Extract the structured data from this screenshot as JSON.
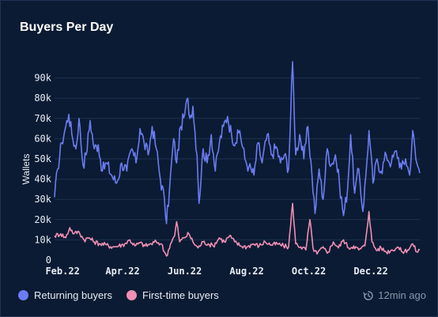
{
  "title": "Buyers Per Day",
  "updated": "12min ago",
  "chart_data": {
    "type": "line",
    "title": "Buyers Per Day",
    "xlabel": "",
    "ylabel": "Wallets",
    "x_ticks": [
      "Feb.22",
      "Apr.22",
      "Jun.22",
      "Aug.22",
      "Oct.22",
      "Dec.22"
    ],
    "y_ticks": [
      "0",
      "10k",
      "20k",
      "30k",
      "40k",
      "50k",
      "60k",
      "70k",
      "80k",
      "90k"
    ],
    "ylim": [
      0,
      100000
    ],
    "x_range": [
      "2022-01-28",
      "2023-01-22"
    ],
    "grid": true,
    "legend_position": "bottom-left",
    "series": [
      {
        "name": "Returning buyers",
        "color": "#6b7cf2",
        "points": [
          [
            "2022-01-28",
            31000
          ],
          [
            "2022-01-31",
            45000
          ],
          [
            "2022-02-04",
            58000
          ],
          [
            "2022-02-08",
            66000
          ],
          [
            "2022-02-11",
            72000
          ],
          [
            "2022-02-14",
            62000
          ],
          [
            "2022-02-18",
            55000
          ],
          [
            "2022-02-21",
            70000
          ],
          [
            "2022-02-25",
            47000
          ],
          [
            "2022-02-28",
            52000
          ],
          [
            "2022-03-04",
            69000
          ],
          [
            "2022-03-08",
            55000
          ],
          [
            "2022-03-12",
            57000
          ],
          [
            "2022-03-16",
            44000
          ],
          [
            "2022-03-20",
            48000
          ],
          [
            "2022-03-25",
            42000
          ],
          [
            "2022-03-30",
            38000
          ],
          [
            "2022-04-04",
            48000
          ],
          [
            "2022-04-09",
            44000
          ],
          [
            "2022-04-14",
            55000
          ],
          [
            "2022-04-18",
            48000
          ],
          [
            "2022-04-22",
            65000
          ],
          [
            "2022-04-26",
            58000
          ],
          [
            "2022-04-30",
            52000
          ],
          [
            "2022-05-04",
            66000
          ],
          [
            "2022-05-08",
            55000
          ],
          [
            "2022-05-12",
            40000
          ],
          [
            "2022-05-16",
            30000
          ],
          [
            "2022-05-18",
            18000
          ],
          [
            "2022-05-21",
            35000
          ],
          [
            "2022-05-25",
            60000
          ],
          [
            "2022-05-28",
            48000
          ],
          [
            "2022-06-01",
            66000
          ],
          [
            "2022-06-05",
            72000
          ],
          [
            "2022-06-08",
            80000
          ],
          [
            "2022-06-10",
            70000
          ],
          [
            "2022-06-13",
            76000
          ],
          [
            "2022-06-17",
            52000
          ],
          [
            "2022-06-19",
            28000
          ],
          [
            "2022-06-23",
            55000
          ],
          [
            "2022-06-27",
            48000
          ],
          [
            "2022-07-01",
            62000
          ],
          [
            "2022-07-05",
            44000
          ],
          [
            "2022-07-09",
            58000
          ],
          [
            "2022-07-13",
            66000
          ],
          [
            "2022-07-17",
            71000
          ],
          [
            "2022-07-21",
            62000
          ],
          [
            "2022-07-25",
            58000
          ],
          [
            "2022-07-29",
            64000
          ],
          [
            "2022-08-03",
            50000
          ],
          [
            "2022-08-07",
            46000
          ],
          [
            "2022-08-12",
            42000
          ],
          [
            "2022-08-16",
            58000
          ],
          [
            "2022-08-20",
            48000
          ],
          [
            "2022-08-25",
            62000
          ],
          [
            "2022-08-29",
            52000
          ],
          [
            "2022-09-03",
            56000
          ],
          [
            "2022-09-07",
            48000
          ],
          [
            "2022-09-11",
            52000
          ],
          [
            "2022-09-15",
            45000
          ],
          [
            "2022-09-19",
            98000
          ],
          [
            "2022-09-22",
            52000
          ],
          [
            "2022-09-26",
            62000
          ],
          [
            "2022-09-30",
            50000
          ],
          [
            "2022-10-04",
            66000
          ],
          [
            "2022-10-08",
            42000
          ],
          [
            "2022-10-11",
            23000
          ],
          [
            "2022-10-15",
            45000
          ],
          [
            "2022-10-19",
            30000
          ],
          [
            "2022-10-23",
            55000
          ],
          [
            "2022-10-27",
            47000
          ],
          [
            "2022-10-31",
            52000
          ],
          [
            "2022-11-04",
            38000
          ],
          [
            "2022-11-08",
            22000
          ],
          [
            "2022-11-12",
            35000
          ],
          [
            "2022-11-15",
            62000
          ],
          [
            "2022-11-19",
            33000
          ],
          [
            "2022-11-23",
            45000
          ],
          [
            "2022-11-27",
            24000
          ],
          [
            "2022-11-30",
            42000
          ],
          [
            "2022-12-03",
            64000
          ],
          [
            "2022-12-07",
            38000
          ],
          [
            "2022-12-11",
            50000
          ],
          [
            "2022-12-15",
            44000
          ],
          [
            "2022-12-20",
            52000
          ],
          [
            "2022-12-25",
            48000
          ],
          [
            "2022-12-30",
            54000
          ],
          [
            "2023-01-04",
            45000
          ],
          [
            "2023-01-08",
            50000
          ],
          [
            "2023-01-12",
            42000
          ],
          [
            "2023-01-15",
            64000
          ],
          [
            "2023-01-18",
            50000
          ],
          [
            "2023-01-22",
            43000
          ]
        ]
      },
      {
        "name": "First-time buyers",
        "color": "#f08fb4",
        "points": [
          [
            "2022-01-28",
            12000
          ],
          [
            "2022-02-03",
            13000
          ],
          [
            "2022-02-08",
            11000
          ],
          [
            "2022-02-12",
            16000
          ],
          [
            "2022-02-16",
            13000
          ],
          [
            "2022-02-21",
            14000
          ],
          [
            "2022-02-26",
            10000
          ],
          [
            "2022-03-03",
            11000
          ],
          [
            "2022-03-08",
            9000
          ],
          [
            "2022-03-14",
            8000
          ],
          [
            "2022-03-20",
            7500
          ],
          [
            "2022-03-26",
            6500
          ],
          [
            "2022-04-01",
            7000
          ],
          [
            "2022-04-07",
            8000
          ],
          [
            "2022-04-12",
            10000
          ],
          [
            "2022-04-17",
            7000
          ],
          [
            "2022-04-22",
            8500
          ],
          [
            "2022-04-27",
            7000
          ],
          [
            "2022-05-03",
            8000
          ],
          [
            "2022-05-08",
            9000
          ],
          [
            "2022-05-13",
            8000
          ],
          [
            "2022-05-16",
            4000
          ],
          [
            "2022-05-18",
            2000
          ],
          [
            "2022-05-22",
            8000
          ],
          [
            "2022-05-26",
            12000
          ],
          [
            "2022-05-28",
            19000
          ],
          [
            "2022-05-31",
            9000
          ],
          [
            "2022-06-04",
            11000
          ],
          [
            "2022-06-09",
            13000
          ],
          [
            "2022-06-13",
            9000
          ],
          [
            "2022-06-18",
            6000
          ],
          [
            "2022-06-23",
            9000
          ],
          [
            "2022-06-28",
            8000
          ],
          [
            "2022-07-03",
            7000
          ],
          [
            "2022-07-09",
            11000
          ],
          [
            "2022-07-14",
            9000
          ],
          [
            "2022-07-19",
            12000
          ],
          [
            "2022-07-24",
            9000
          ],
          [
            "2022-07-30",
            7000
          ],
          [
            "2022-08-05",
            6500
          ],
          [
            "2022-08-11",
            8000
          ],
          [
            "2022-08-17",
            7000
          ],
          [
            "2022-08-23",
            9000
          ],
          [
            "2022-08-29",
            7500
          ],
          [
            "2022-09-04",
            8000
          ],
          [
            "2022-09-10",
            7000
          ],
          [
            "2022-09-15",
            6500
          ],
          [
            "2022-09-19",
            28000
          ],
          [
            "2022-09-22",
            8000
          ],
          [
            "2022-09-27",
            6500
          ],
          [
            "2022-10-02",
            5000
          ],
          [
            "2022-10-06",
            20000
          ],
          [
            "2022-10-09",
            6000
          ],
          [
            "2022-10-13",
            3000
          ],
          [
            "2022-10-18",
            6000
          ],
          [
            "2022-10-24",
            4000
          ],
          [
            "2022-10-29",
            9000
          ],
          [
            "2022-11-03",
            6000
          ],
          [
            "2022-11-08",
            10000
          ],
          [
            "2022-11-13",
            6000
          ],
          [
            "2022-11-18",
            7000
          ],
          [
            "2022-11-23",
            5000
          ],
          [
            "2022-11-29",
            7000
          ],
          [
            "2022-12-03",
            24000
          ],
          [
            "2022-12-06",
            9000
          ],
          [
            "2022-12-10",
            5000
          ],
          [
            "2022-12-15",
            6000
          ],
          [
            "2022-12-20",
            4000
          ],
          [
            "2022-12-26",
            5000
          ],
          [
            "2022-12-31",
            6500
          ],
          [
            "2023-01-05",
            4000
          ],
          [
            "2023-01-10",
            5000
          ],
          [
            "2023-01-15",
            8000
          ],
          [
            "2023-01-19",
            4000
          ],
          [
            "2023-01-22",
            5000
          ]
        ]
      }
    ]
  }
}
